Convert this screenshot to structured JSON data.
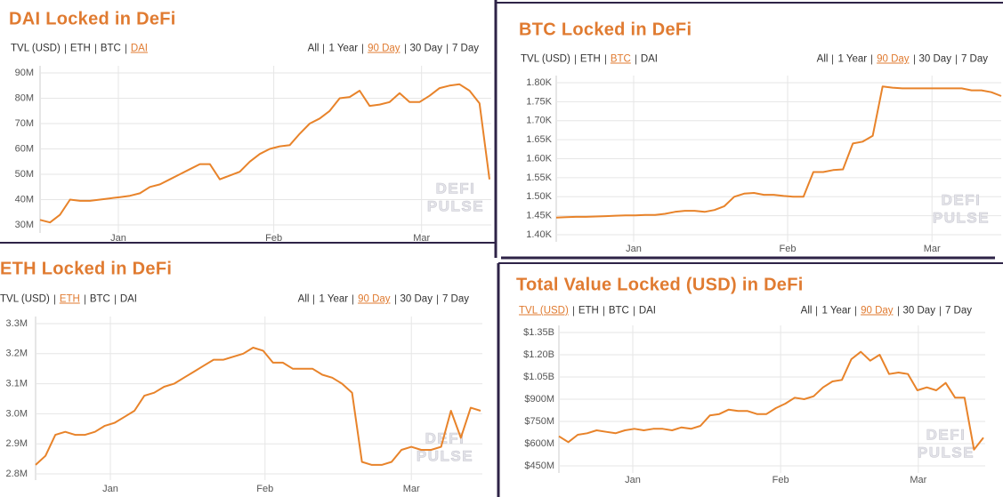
{
  "chart_data": [
    {
      "type": "line",
      "title": "DAI Locked in DeFi",
      "tabs": [
        "TVL (USD)",
        "ETH",
        "BTC",
        "DAI"
      ],
      "active_tab": 3,
      "ranges": [
        "All",
        "1 Year",
        "90 Day",
        "30 Day",
        "7 Day"
      ],
      "active_range": 2,
      "watermark": [
        "DEFI",
        "PULSE"
      ],
      "color": "#e8832a",
      "grid": true,
      "xlim": [
        0,
        45
      ],
      "xticks": [
        {
          "value": 7.84,
          "label": "Jan"
        },
        {
          "value": 23.4,
          "label": "Feb"
        },
        {
          "value": 38.2,
          "label": "Mar"
        }
      ],
      "ylim": [
        30000000,
        90000000
      ],
      "yticks": [
        {
          "value": 30000000,
          "label": "30M"
        },
        {
          "value": 40000000,
          "label": "40M"
        },
        {
          "value": 50000000,
          "label": "50M"
        },
        {
          "value": 60000000,
          "label": "60M"
        },
        {
          "value": 70000000,
          "label": "70M"
        },
        {
          "value": 80000000,
          "label": "80M"
        },
        {
          "value": 90000000,
          "label": "90M"
        }
      ],
      "values": [
        32000000,
        31000000,
        34000000,
        40000000,
        39500000,
        39500000,
        40000000,
        40500000,
        41000000,
        41500000,
        42500000,
        45000000,
        46000000,
        48000000,
        50000000,
        52000000,
        54000000,
        54000000,
        48000000,
        49500000,
        51000000,
        55000000,
        58000000,
        60000000,
        61000000,
        61500000,
        66000000,
        70000000,
        72000000,
        75000000,
        80000000,
        80500000,
        83000000,
        77000000,
        77500000,
        78500000,
        82000000,
        78500000,
        78500000,
        81000000,
        84000000,
        85000000,
        85500000,
        83000000,
        78000000,
        48000000
      ]
    },
    {
      "type": "line",
      "title": "BTC Locked in DeFi",
      "tabs": [
        "TVL (USD)",
        "ETH",
        "BTC",
        "DAI"
      ],
      "active_tab": 2,
      "ranges": [
        "All",
        "1 Year",
        "90 Day",
        "30 Day",
        "7 Day"
      ],
      "active_range": 2,
      "watermark": [
        "DEFI",
        "PULSE"
      ],
      "color": "#e8832a",
      "grid": true,
      "xlim": [
        0,
        45
      ],
      "xticks": [
        {
          "value": 7.83,
          "label": "Jan"
        },
        {
          "value": 23.4,
          "label": "Feb"
        },
        {
          "value": 38.0,
          "label": "Mar"
        }
      ],
      "ylim": [
        1400,
        1800
      ],
      "yticks": [
        {
          "value": 1400,
          "label": "1.40K"
        },
        {
          "value": 1450,
          "label": "1.45K"
        },
        {
          "value": 1500,
          "label": "1.50K"
        },
        {
          "value": 1550,
          "label": "1.55K"
        },
        {
          "value": 1600,
          "label": "1.60K"
        },
        {
          "value": 1650,
          "label": "1.65K"
        },
        {
          "value": 1700,
          "label": "1.70K"
        },
        {
          "value": 1750,
          "label": "1.75K"
        },
        {
          "value": 1800,
          "label": "1.80K"
        }
      ],
      "values": [
        1445,
        1446,
        1447,
        1447,
        1448,
        1449,
        1450,
        1451,
        1451,
        1452,
        1452,
        1455,
        1460,
        1463,
        1463,
        1460,
        1465,
        1475,
        1500,
        1508,
        1510,
        1505,
        1505,
        1502,
        1500,
        1500,
        1565,
        1565,
        1570,
        1572,
        1640,
        1645,
        1660,
        1790,
        1787,
        1785,
        1785,
        1785,
        1785,
        1785,
        1785,
        1785,
        1780,
        1780,
        1775,
        1765
      ]
    },
    {
      "type": "line",
      "title": "ETH Locked in DeFi",
      "tabs": [
        "TVL (USD)",
        "ETH",
        "BTC",
        "DAI"
      ],
      "active_tab": 1,
      "ranges": [
        "All",
        "1 Year",
        "90 Day",
        "30 Day",
        "7 Day"
      ],
      "active_range": 2,
      "watermark": [
        "DEFI",
        "PULSE"
      ],
      "color": "#e8832a",
      "grid": true,
      "xlim": [
        0,
        45
      ],
      "xticks": [
        {
          "value": 7.56,
          "label": "Jan"
        },
        {
          "value": 23.2,
          "label": "Feb"
        },
        {
          "value": 38.0,
          "label": "Mar"
        }
      ],
      "ylim": [
        2800000,
        3300000
      ],
      "yticks": [
        {
          "value": 2800000,
          "label": "2.8M"
        },
        {
          "value": 2900000,
          "label": "2.9M"
        },
        {
          "value": 3000000,
          "label": "3.0M"
        },
        {
          "value": 3100000,
          "label": "3.1M"
        },
        {
          "value": 3200000,
          "label": "3.2M"
        },
        {
          "value": 3300000,
          "label": "3.3M"
        }
      ],
      "values": [
        2830000,
        2860000,
        2930000,
        2940000,
        2930000,
        2930000,
        2940000,
        2960000,
        2970000,
        2990000,
        3010000,
        3060000,
        3070000,
        3090000,
        3100000,
        3120000,
        3140000,
        3160000,
        3180000,
        3180000,
        3190000,
        3200000,
        3220000,
        3210000,
        3170000,
        3170000,
        3150000,
        3150000,
        3150000,
        3130000,
        3120000,
        3100000,
        3070000,
        2840000,
        2830000,
        2830000,
        2840000,
        2880000,
        2890000,
        2880000,
        2880000,
        2890000,
        3010000,
        2920000,
        3020000,
        3010000
      ]
    },
    {
      "type": "line",
      "title": "Total Value Locked (USD) in DeFi",
      "tabs": [
        "TVL (USD)",
        "ETH",
        "BTC",
        "DAI"
      ],
      "active_tab": 0,
      "ranges": [
        "All",
        "1 Year",
        "90 Day",
        "30 Day",
        "7 Day"
      ],
      "active_range": 2,
      "watermark": [
        "DEFI",
        "PULSE"
      ],
      "color": "#e8832a",
      "grid": true,
      "xlim": [
        0,
        45
      ],
      "xticks": [
        {
          "value": 7.83,
          "label": "Jan"
        },
        {
          "value": 23.5,
          "label": "Feb"
        },
        {
          "value": 38.1,
          "label": "Mar"
        }
      ],
      "ylim": [
        450000000,
        1350000000
      ],
      "yticks": [
        {
          "value": 450000000,
          "label": "$450M"
        },
        {
          "value": 600000000,
          "label": "$600M"
        },
        {
          "value": 750000000,
          "label": "$750M"
        },
        {
          "value": 900000000,
          "label": "$900M"
        },
        {
          "value": 1050000000,
          "label": "$1.05B"
        },
        {
          "value": 1200000000,
          "label": "$1.20B"
        },
        {
          "value": 1350000000,
          "label": "$1.35B"
        }
      ],
      "values": [
        650000000,
        610000000,
        660000000,
        670000000,
        690000000,
        680000000,
        670000000,
        690000000,
        700000000,
        690000000,
        700000000,
        700000000,
        690000000,
        710000000,
        700000000,
        720000000,
        790000000,
        800000000,
        830000000,
        820000000,
        820000000,
        800000000,
        800000000,
        840000000,
        870000000,
        910000000,
        900000000,
        920000000,
        980000000,
        1020000000,
        1030000000,
        1170000000,
        1220000000,
        1160000000,
        1200000000,
        1070000000,
        1080000000,
        1070000000,
        960000000,
        980000000,
        960000000,
        1010000000,
        910000000,
        910000000,
        560000000,
        640000000
      ]
    }
  ]
}
